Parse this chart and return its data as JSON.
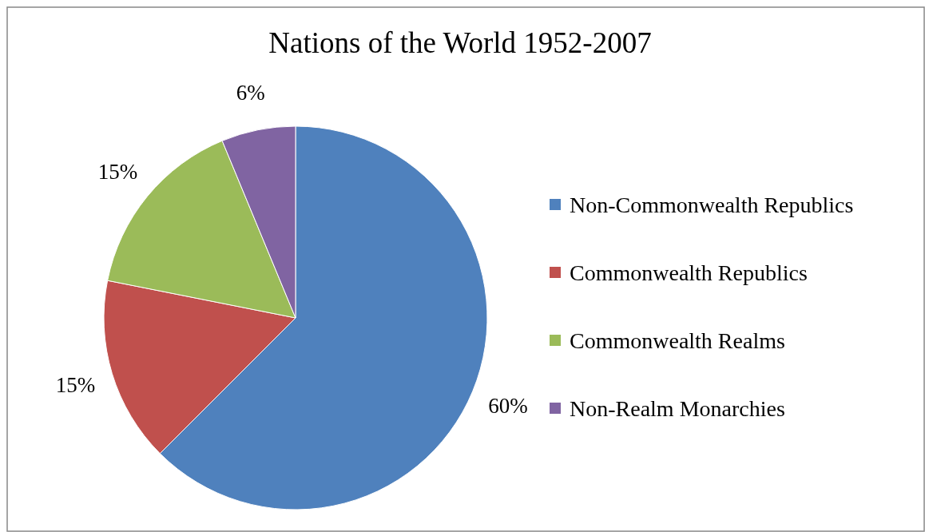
{
  "chart_data": {
    "type": "pie",
    "title": "Nations of the World 1952-2007",
    "categories": [
      "Non-Commonwealth Republics",
      "Commonwealth Republics",
      "Commonwealth Realms",
      "Non-Realm Monarchies"
    ],
    "values": [
      60,
      15,
      15,
      6
    ],
    "colors": [
      "#4f81bd",
      "#c0504d",
      "#9bbb59",
      "#8064a2"
    ],
    "value_labels": [
      "60%",
      "15%",
      "15%",
      "6%"
    ],
    "legend": "right"
  }
}
